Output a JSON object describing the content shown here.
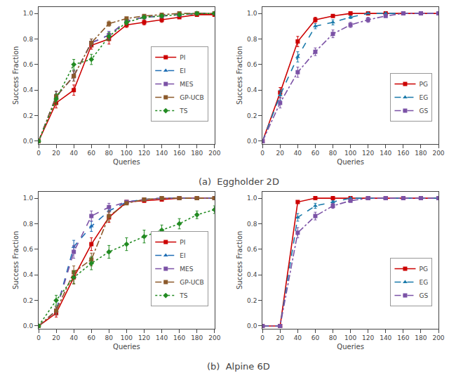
{
  "chart_data": [
    {
      "type": "line",
      "title": "(a)  Eggholder 2D",
      "xlabel": "Queries",
      "ylabel": "Success Fraction",
      "x": [
        0,
        20,
        40,
        60,
        80,
        100,
        120,
        140,
        160,
        180,
        200
      ],
      "xlim": [
        0,
        200
      ],
      "ylim": [
        -0.02,
        1.05
      ],
      "xticks": [
        0,
        20,
        40,
        60,
        80,
        100,
        120,
        140,
        160,
        180,
        200
      ],
      "yticks": [
        {
          "value": 0.0,
          "label": "0.0"
        },
        0.2,
        0.4,
        0.6,
        0.8,
        {
          "value": 1.0,
          "label": "1.0"
        }
      ],
      "grid": false,
      "legend": "lower right",
      "series": [
        {
          "name": "PI",
          "color": "#cc0000",
          "marker": "square",
          "line_style": "solid",
          "values": [
            0.0,
            0.3,
            0.4,
            0.75,
            0.8,
            0.91,
            0.93,
            0.95,
            0.97,
            0.99,
            0.99
          ],
          "errors": [
            0.0,
            0.04,
            0.04,
            0.03,
            0.04,
            0.02,
            0.02,
            0.02,
            0.01,
            0.01,
            0.01
          ]
        },
        {
          "name": "EI",
          "color": "#1f6eb5",
          "marker": "triangle",
          "line_style": "dashed",
          "values": [
            0.0,
            0.35,
            0.51,
            0.77,
            0.83,
            0.94,
            0.97,
            0.98,
            0.99,
            1.0,
            1.0
          ],
          "errors": [
            0.0,
            0.04,
            0.04,
            0.03,
            0.03,
            0.02,
            0.01,
            0.01,
            0.01,
            0.0,
            0.0
          ]
        },
        {
          "name": "MES",
          "color": "#7b52a6",
          "marker": "square",
          "line_style": "dashed",
          "values": [
            0.0,
            0.35,
            0.51,
            0.77,
            0.83,
            0.94,
            0.97,
            0.98,
            0.99,
            1.0,
            1.0
          ],
          "errors": [
            0.0,
            0.04,
            0.04,
            0.03,
            0.03,
            0.02,
            0.01,
            0.01,
            0.01,
            0.0,
            0.0
          ]
        },
        {
          "name": "GP-UCB",
          "color": "#8b5a2b",
          "marker": "square",
          "line_style": "dashdot",
          "values": [
            0.0,
            0.35,
            0.51,
            0.77,
            0.92,
            0.96,
            0.98,
            0.99,
            1.0,
            1.0,
            1.0
          ],
          "errors": [
            0.0,
            0.04,
            0.04,
            0.03,
            0.02,
            0.01,
            0.01,
            0.01,
            0.0,
            0.0,
            0.0
          ]
        },
        {
          "name": "TS",
          "color": "#228b22",
          "marker": "diamond",
          "line_style": "dotted",
          "values": [
            0.0,
            0.33,
            0.6,
            0.64,
            0.82,
            0.93,
            0.97,
            0.98,
            0.99,
            1.0,
            1.0
          ],
          "errors": [
            0.0,
            0.04,
            0.04,
            0.04,
            0.03,
            0.02,
            0.01,
            0.01,
            0.01,
            0.0,
            0.0
          ]
        }
      ]
    },
    {
      "type": "line",
      "xlabel": "Queries",
      "ylabel": "Success Fraction",
      "x": [
        0,
        20,
        40,
        60,
        80,
        100,
        120,
        140,
        160,
        180,
        200
      ],
      "xlim": [
        0,
        200
      ],
      "ylim": [
        -0.02,
        1.05
      ],
      "xticks": [
        0,
        20,
        40,
        60,
        80,
        100,
        120,
        140,
        160,
        180,
        200
      ],
      "yticks": [
        {
          "value": 0.0,
          "label": "0.0"
        },
        0.2,
        0.4,
        0.6,
        0.8,
        {
          "value": 1.0,
          "label": "1.0"
        }
      ],
      "grid": false,
      "legend": "lower right",
      "series": [
        {
          "name": "PG",
          "color": "#cc0000",
          "marker": "square",
          "line_style": "solid",
          "values": [
            0.0,
            0.38,
            0.78,
            0.95,
            0.98,
            1.0,
            1.0,
            1.0,
            1.0,
            1.0,
            1.0
          ],
          "errors": [
            0.0,
            0.04,
            0.04,
            0.02,
            0.01,
            0.0,
            0.0,
            0.0,
            0.0,
            0.0,
            0.0
          ]
        },
        {
          "name": "EG",
          "color": "#1a7aaa",
          "marker": "triangle",
          "line_style": "dashed",
          "values": [
            0.0,
            0.36,
            0.66,
            0.9,
            0.93,
            0.97,
            1.0,
            1.0,
            1.0,
            1.0,
            1.0
          ],
          "errors": [
            0.0,
            0.04,
            0.04,
            0.02,
            0.02,
            0.01,
            0.0,
            0.0,
            0.0,
            0.0,
            0.0
          ]
        },
        {
          "name": "GS",
          "color": "#7b52a6",
          "marker": "square",
          "line_style": "dashdot",
          "values": [
            0.0,
            0.3,
            0.54,
            0.7,
            0.84,
            0.91,
            0.95,
            0.98,
            1.0,
            1.0,
            1.0
          ],
          "errors": [
            0.0,
            0.04,
            0.04,
            0.03,
            0.03,
            0.02,
            0.02,
            0.01,
            0.01,
            0.0,
            0.0
          ]
        }
      ]
    },
    {
      "type": "line",
      "title": "(b)  Alpine 6D",
      "xlabel": "Queries",
      "ylabel": "Success Fraction",
      "x": [
        0,
        20,
        40,
        60,
        80,
        100,
        120,
        140,
        160,
        180,
        200
      ],
      "xlim": [
        0,
        200
      ],
      "ylim": [
        -0.02,
        1.05
      ],
      "xticks": [
        0,
        20,
        40,
        60,
        80,
        100,
        120,
        140,
        160,
        180,
        200
      ],
      "yticks": [
        {
          "value": 0.0,
          "label": "0.0"
        },
        0.2,
        0.4,
        0.6,
        0.8,
        {
          "value": 1.0,
          "label": "1.0"
        }
      ],
      "grid": false,
      "legend": "lower right",
      "series": [
        {
          "name": "PI",
          "color": "#cc0000",
          "marker": "square",
          "line_style": "solid",
          "values": [
            0.0,
            0.1,
            0.38,
            0.64,
            0.85,
            0.97,
            0.98,
            0.99,
            1.0,
            1.0,
            1.0
          ],
          "errors": [
            0.0,
            0.03,
            0.05,
            0.05,
            0.04,
            0.01,
            0.01,
            0.01,
            0.0,
            0.0,
            0.0
          ]
        },
        {
          "name": "EI",
          "color": "#1f6eb5",
          "marker": "triangle",
          "line_style": "dashed",
          "values": [
            0.0,
            0.12,
            0.62,
            0.78,
            0.9,
            0.97,
            0.99,
            1.0,
            1.0,
            1.0,
            1.0
          ],
          "errors": [
            0.0,
            0.03,
            0.05,
            0.04,
            0.03,
            0.01,
            0.01,
            0.0,
            0.0,
            0.0,
            0.0
          ]
        },
        {
          "name": "MES",
          "color": "#7b52a6",
          "marker": "square",
          "line_style": "dashed",
          "values": [
            0.0,
            0.12,
            0.58,
            0.86,
            0.93,
            0.97,
            0.99,
            1.0,
            1.0,
            1.0,
            1.0
          ],
          "errors": [
            0.0,
            0.03,
            0.05,
            0.04,
            0.03,
            0.01,
            0.01,
            0.0,
            0.0,
            0.0,
            0.0
          ]
        },
        {
          "name": "GP-UCB",
          "color": "#8b5a2b",
          "marker": "square",
          "line_style": "dashdot",
          "values": [
            0.0,
            0.12,
            0.42,
            0.52,
            0.86,
            0.96,
            0.99,
            1.0,
            1.0,
            1.0,
            1.0
          ],
          "errors": [
            0.0,
            0.03,
            0.05,
            0.05,
            0.04,
            0.01,
            0.01,
            0.0,
            0.0,
            0.0,
            0.0
          ]
        },
        {
          "name": "TS",
          "color": "#228b22",
          "marker": "diamond",
          "line_style": "dotted",
          "values": [
            0.0,
            0.2,
            0.38,
            0.49,
            0.58,
            0.64,
            0.7,
            0.75,
            0.8,
            0.87,
            0.91
          ],
          "errors": [
            0.0,
            0.04,
            0.05,
            0.05,
            0.05,
            0.05,
            0.05,
            0.04,
            0.04,
            0.03,
            0.03
          ]
        }
      ]
    },
    {
      "type": "line",
      "xlabel": "Queries",
      "ylabel": "Success Fraction",
      "x": [
        0,
        20,
        40,
        60,
        80,
        100,
        120,
        140,
        160,
        180,
        200
      ],
      "xlim": [
        0,
        200
      ],
      "ylim": [
        -0.02,
        1.05
      ],
      "xticks": [
        0,
        20,
        40,
        60,
        80,
        100,
        120,
        140,
        160,
        180,
        200
      ],
      "yticks": [
        {
          "value": 0.0,
          "label": "0.0"
        },
        0.2,
        0.4,
        0.6,
        0.8,
        {
          "value": 1.0,
          "label": "1.0"
        }
      ],
      "grid": false,
      "legend": "lower right",
      "series": [
        {
          "name": "PG",
          "color": "#cc0000",
          "marker": "square",
          "line_style": "solid",
          "values": [
            0.0,
            0.0,
            0.97,
            1.0,
            1.0,
            1.0,
            1.0,
            1.0,
            1.0,
            1.0,
            1.0
          ],
          "errors": [
            0.0,
            0.0,
            0.01,
            0.0,
            0.0,
            0.0,
            0.0,
            0.0,
            0.0,
            0.0,
            0.0
          ]
        },
        {
          "name": "EG",
          "color": "#1a7aaa",
          "marker": "triangle",
          "line_style": "dashed",
          "values": [
            0.0,
            0.0,
            0.85,
            0.94,
            0.97,
            1.0,
            1.0,
            1.0,
            1.0,
            1.0,
            1.0
          ],
          "errors": [
            0.0,
            0.0,
            0.03,
            0.02,
            0.01,
            0.0,
            0.0,
            0.0,
            0.0,
            0.0,
            0.0
          ]
        },
        {
          "name": "GS",
          "color": "#7b52a6",
          "marker": "square",
          "line_style": "dashdot",
          "values": [
            0.0,
            0.0,
            0.73,
            0.86,
            0.94,
            0.98,
            1.0,
            1.0,
            1.0,
            1.0,
            1.0
          ],
          "errors": [
            0.0,
            0.0,
            0.04,
            0.03,
            0.02,
            0.01,
            0.0,
            0.0,
            0.0,
            0.0,
            0.0
          ]
        }
      ]
    }
  ]
}
